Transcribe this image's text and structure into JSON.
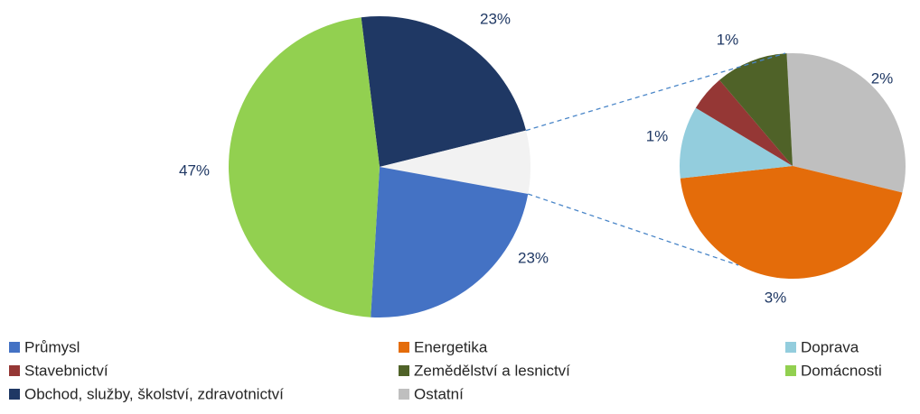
{
  "chart_data": {
    "type": "pie-of-pie",
    "categories": [
      "Průmysl",
      "Energetika",
      "Doprava",
      "Stavebnictví",
      "Zemědělství a lesnictví",
      "Domácnosti",
      "Obchod, služby, školství, zdravotnictví",
      "Ostatní"
    ],
    "colors": [
      "#4472c4",
      "#e46c0a",
      "#93cddd",
      "#953735",
      "#4f6228",
      "#92d050",
      "#1f3864",
      "#bfbfbf"
    ],
    "values": [
      23,
      3,
      0.7,
      0.35,
      0.7,
      47,
      23,
      2
    ],
    "value_labels": [
      "23%",
      "3%",
      "1%",
      null,
      "1%",
      "47%",
      "23%",
      "2%"
    ]
  }
}
